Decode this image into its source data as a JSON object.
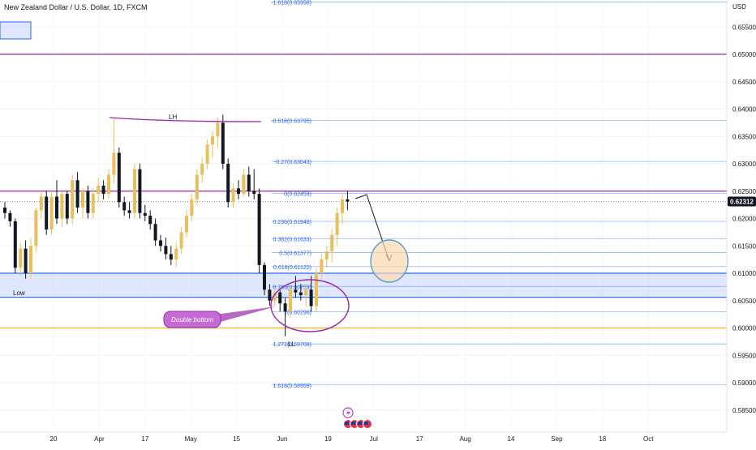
{
  "chart_data": {
    "type": "candlestick",
    "title": "New Zealand Dollar / U.S. Dollar, 1D, FXCM",
    "currency": "USD",
    "ylim": [
      0.582,
      0.663
    ],
    "y_ticks": [
      "0.65500",
      "0.65000",
      "0.64500",
      "0.64000",
      "0.63500",
      "0.63000",
      "0.62500",
      "0.62000",
      "0.61500",
      "0.61000",
      "0.60500",
      "0.60000",
      "0.59500",
      "0.59000",
      "0.58500"
    ],
    "x_ticks": [
      "20",
      "Apr",
      "17",
      "May",
      "15",
      "Jun",
      "19",
      "Jul",
      "17",
      "Aug",
      "14",
      "Sep",
      "18",
      "Oct"
    ],
    "last_price": "0.62312",
    "bull_color": "#e8bf5b",
    "bear_color": "#131722",
    "candles": [
      {
        "o": 0.622,
        "h": 0.623,
        "l": 0.62,
        "c": 0.621
      },
      {
        "o": 0.621,
        "h": 0.6215,
        "l": 0.6185,
        "c": 0.6195
      },
      {
        "o": 0.6195,
        "h": 0.62,
        "l": 0.61,
        "c": 0.611
      },
      {
        "o": 0.611,
        "h": 0.6155,
        "l": 0.6095,
        "c": 0.6145
      },
      {
        "o": 0.6145,
        "h": 0.616,
        "l": 0.609,
        "c": 0.61
      },
      {
        "o": 0.61,
        "h": 0.6165,
        "l": 0.609,
        "c": 0.615
      },
      {
        "o": 0.615,
        "h": 0.622,
        "l": 0.614,
        "c": 0.6215
      },
      {
        "o": 0.6215,
        "h": 0.625,
        "l": 0.62,
        "c": 0.624
      },
      {
        "o": 0.624,
        "h": 0.625,
        "l": 0.617,
        "c": 0.618
      },
      {
        "o": 0.618,
        "h": 0.625,
        "l": 0.617,
        "c": 0.624
      },
      {
        "o": 0.624,
        "h": 0.627,
        "l": 0.619,
        "c": 0.62
      },
      {
        "o": 0.62,
        "h": 0.625,
        "l": 0.6185,
        "c": 0.6245
      },
      {
        "o": 0.6245,
        "h": 0.625,
        "l": 0.619,
        "c": 0.62
      },
      {
        "o": 0.62,
        "h": 0.628,
        "l": 0.619,
        "c": 0.627
      },
      {
        "o": 0.627,
        "h": 0.6285,
        "l": 0.621,
        "c": 0.622
      },
      {
        "o": 0.622,
        "h": 0.6255,
        "l": 0.62,
        "c": 0.625
      },
      {
        "o": 0.625,
        "h": 0.626,
        "l": 0.62,
        "c": 0.621
      },
      {
        "o": 0.621,
        "h": 0.6255,
        "l": 0.62,
        "c": 0.6245
      },
      {
        "o": 0.6245,
        "h": 0.6275,
        "l": 0.623,
        "c": 0.626
      },
      {
        "o": 0.626,
        "h": 0.627,
        "l": 0.6235,
        "c": 0.6245
      },
      {
        "o": 0.6245,
        "h": 0.629,
        "l": 0.6235,
        "c": 0.628
      },
      {
        "o": 0.628,
        "h": 0.6385,
        "l": 0.6265,
        "c": 0.632
      },
      {
        "o": 0.632,
        "h": 0.633,
        "l": 0.622,
        "c": 0.623
      },
      {
        "o": 0.623,
        "h": 0.624,
        "l": 0.6205,
        "c": 0.6215
      },
      {
        "o": 0.6215,
        "h": 0.623,
        "l": 0.62,
        "c": 0.621
      },
      {
        "o": 0.621,
        "h": 0.63,
        "l": 0.62,
        "c": 0.629
      },
      {
        "o": 0.629,
        "h": 0.63,
        "l": 0.62,
        "c": 0.621
      },
      {
        "o": 0.621,
        "h": 0.6225,
        "l": 0.6195,
        "c": 0.6205
      },
      {
        "o": 0.6205,
        "h": 0.6215,
        "l": 0.618,
        "c": 0.619
      },
      {
        "o": 0.619,
        "h": 0.62,
        "l": 0.615,
        "c": 0.616
      },
      {
        "o": 0.616,
        "h": 0.617,
        "l": 0.614,
        "c": 0.615
      },
      {
        "o": 0.615,
        "h": 0.6165,
        "l": 0.6125,
        "c": 0.6135
      },
      {
        "o": 0.6135,
        "h": 0.615,
        "l": 0.6115,
        "c": 0.6125
      },
      {
        "o": 0.6125,
        "h": 0.6155,
        "l": 0.611,
        "c": 0.6145
      },
      {
        "o": 0.6145,
        "h": 0.6185,
        "l": 0.6135,
        "c": 0.6175
      },
      {
        "o": 0.6175,
        "h": 0.6215,
        "l": 0.6165,
        "c": 0.6205
      },
      {
        "o": 0.6205,
        "h": 0.6245,
        "l": 0.6195,
        "c": 0.6235
      },
      {
        "o": 0.6235,
        "h": 0.629,
        "l": 0.6225,
        "c": 0.628
      },
      {
        "o": 0.628,
        "h": 0.631,
        "l": 0.6265,
        "c": 0.63
      },
      {
        "o": 0.63,
        "h": 0.6345,
        "l": 0.629,
        "c": 0.6335
      },
      {
        "o": 0.6335,
        "h": 0.636,
        "l": 0.631,
        "c": 0.635
      },
      {
        "o": 0.635,
        "h": 0.6385,
        "l": 0.633,
        "c": 0.6375
      },
      {
        "o": 0.6375,
        "h": 0.639,
        "l": 0.629,
        "c": 0.63
      },
      {
        "o": 0.63,
        "h": 0.631,
        "l": 0.622,
        "c": 0.623
      },
      {
        "o": 0.623,
        "h": 0.6265,
        "l": 0.622,
        "c": 0.6255
      },
      {
        "o": 0.6255,
        "h": 0.627,
        "l": 0.6235,
        "c": 0.6245
      },
      {
        "o": 0.6245,
        "h": 0.629,
        "l": 0.624,
        "c": 0.628
      },
      {
        "o": 0.628,
        "h": 0.6295,
        "l": 0.624,
        "c": 0.625
      },
      {
        "o": 0.625,
        "h": 0.629,
        "l": 0.6235,
        "c": 0.6245
      },
      {
        "o": 0.6245,
        "h": 0.6255,
        "l": 0.61,
        "c": 0.6115
      },
      {
        "o": 0.6115,
        "h": 0.612,
        "l": 0.606,
        "c": 0.607
      },
      {
        "o": 0.607,
        "h": 0.608,
        "l": 0.604,
        "c": 0.605
      },
      {
        "o": 0.605,
        "h": 0.6075,
        "l": 0.604,
        "c": 0.6065
      },
      {
        "o": 0.6065,
        "h": 0.607,
        "l": 0.603,
        "c": 0.6045
      },
      {
        "o": 0.6045,
        "h": 0.6055,
        "l": 0.5985,
        "c": 0.603
      },
      {
        "o": 0.603,
        "h": 0.608,
        "l": 0.602,
        "c": 0.607
      },
      {
        "o": 0.607,
        "h": 0.6095,
        "l": 0.6055,
        "c": 0.6065
      },
      {
        "o": 0.6065,
        "h": 0.608,
        "l": 0.605,
        "c": 0.606
      },
      {
        "o": 0.606,
        "h": 0.608,
        "l": 0.604,
        "c": 0.607
      },
      {
        "o": 0.607,
        "h": 0.6095,
        "l": 0.603,
        "c": 0.604
      },
      {
        "o": 0.604,
        "h": 0.611,
        "l": 0.603,
        "c": 0.61
      },
      {
        "o": 0.61,
        "h": 0.6135,
        "l": 0.609,
        "c": 0.6125
      },
      {
        "o": 0.6125,
        "h": 0.615,
        "l": 0.611,
        "c": 0.614
      },
      {
        "o": 0.614,
        "h": 0.618,
        "l": 0.612,
        "c": 0.617
      },
      {
        "o": 0.617,
        "h": 0.622,
        "l": 0.615,
        "c": 0.621
      },
      {
        "o": 0.621,
        "h": 0.6245,
        "l": 0.619,
        "c": 0.6235
      },
      {
        "o": 0.6235,
        "h": 0.625,
        "l": 0.6215,
        "c": 0.6231
      }
    ],
    "fib_levels": [
      {
        "label": "-1.618(0.65958)",
        "price": 0.65958
      },
      {
        "label": "-0.618(0.63795)",
        "price": 0.63795
      },
      {
        "label": "-0.27(0.63043)",
        "price": 0.63043
      },
      {
        "label": "0(0.62459)",
        "price": 0.62459
      },
      {
        "label": "0.236(0.61948)",
        "price": 0.61948
      },
      {
        "label": "0.382(0.61633)",
        "price": 0.61633
      },
      {
        "label": "0.5(0.61377)",
        "price": 0.61377
      },
      {
        "label": "0.618(0.61122)",
        "price": 0.61122
      },
      {
        "label": "0.786(0.60759)",
        "price": 0.60759
      },
      {
        "label": "1(0.60296)",
        "price": 0.60296
      },
      {
        "label": "1.272(0.59708)",
        "price": 0.59708
      },
      {
        "label": "1.618(0.58959)",
        "price": 0.58959
      }
    ],
    "resistance_line": 0.65,
    "resistance_line_2": 0.625,
    "support_line": 0.6,
    "demand_zone": [
      0.6056,
      0.61
    ],
    "line_color": "#9c27b0",
    "zone_color": "#2962ff",
    "support_color": "#f0b429",
    "annotations": {
      "lh": "LH",
      "low": "Low",
      "ll": "LL",
      "callout": "Double bottom"
    },
    "events": [
      "flash-icon",
      "us-flag-icon",
      "us-flag-icon",
      "us-flag-icon"
    ]
  }
}
